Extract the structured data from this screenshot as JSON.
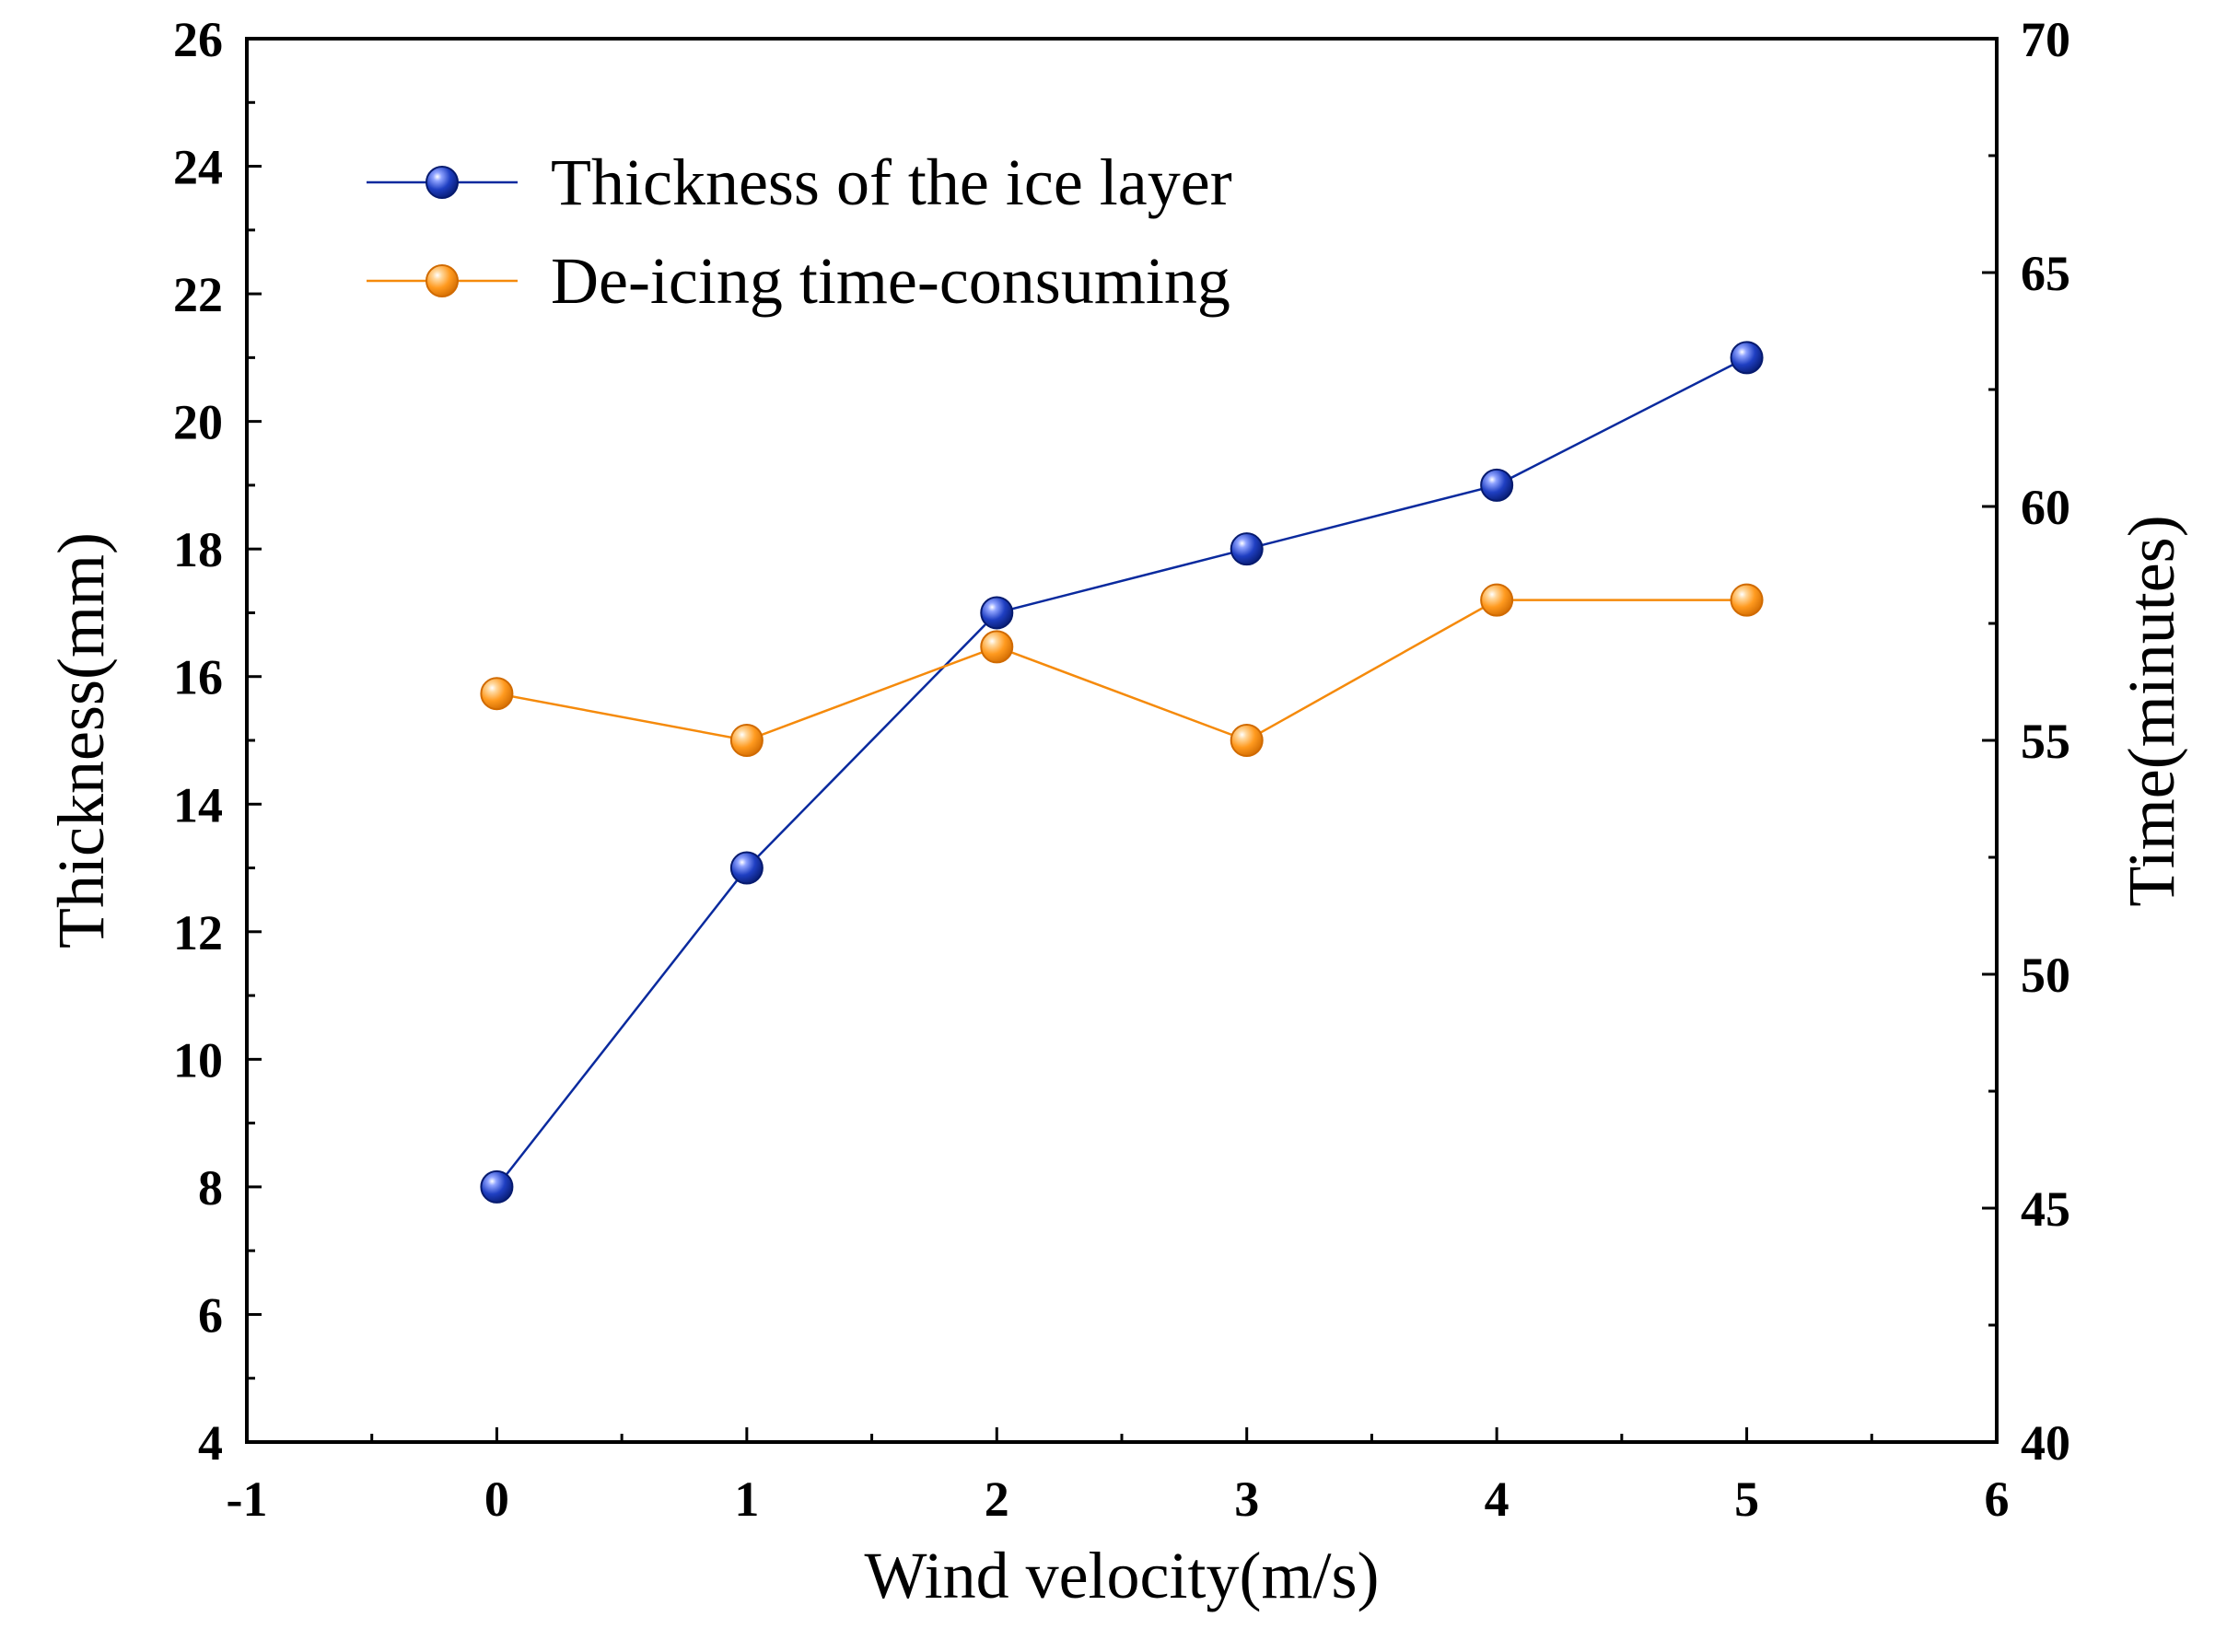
{
  "chart_data": {
    "type": "line",
    "title": "",
    "xlabel": "Wind velocity(m/s)",
    "ylabel": "Thickness(mm)",
    "y2label": "Time(minutes)",
    "xlim": [
      -1,
      6
    ],
    "ylim": [
      4,
      26
    ],
    "y2lim": [
      40,
      70
    ],
    "xticks": [
      -1,
      0,
      1,
      2,
      3,
      4,
      5,
      6
    ],
    "yticks": [
      4,
      6,
      8,
      10,
      12,
      14,
      16,
      18,
      20,
      22,
      24,
      26
    ],
    "y2ticks": [
      40,
      45,
      50,
      55,
      60,
      65,
      70
    ],
    "grid": false,
    "legend_position": "top-left",
    "series": [
      {
        "name": "Thickness of the ice layer",
        "axis": "left",
        "color": "#0a2a9e",
        "x": [
          0,
          1,
          2,
          3,
          4,
          5
        ],
        "values": [
          8,
          13,
          17,
          18,
          19,
          21
        ]
      },
      {
        "name": "De-icing time-consuming",
        "axis": "right",
        "color": "#f58a0b",
        "x": [
          0,
          1,
          2,
          3,
          4,
          5
        ],
        "values": [
          56,
          55,
          57,
          55,
          58,
          58
        ]
      }
    ]
  }
}
